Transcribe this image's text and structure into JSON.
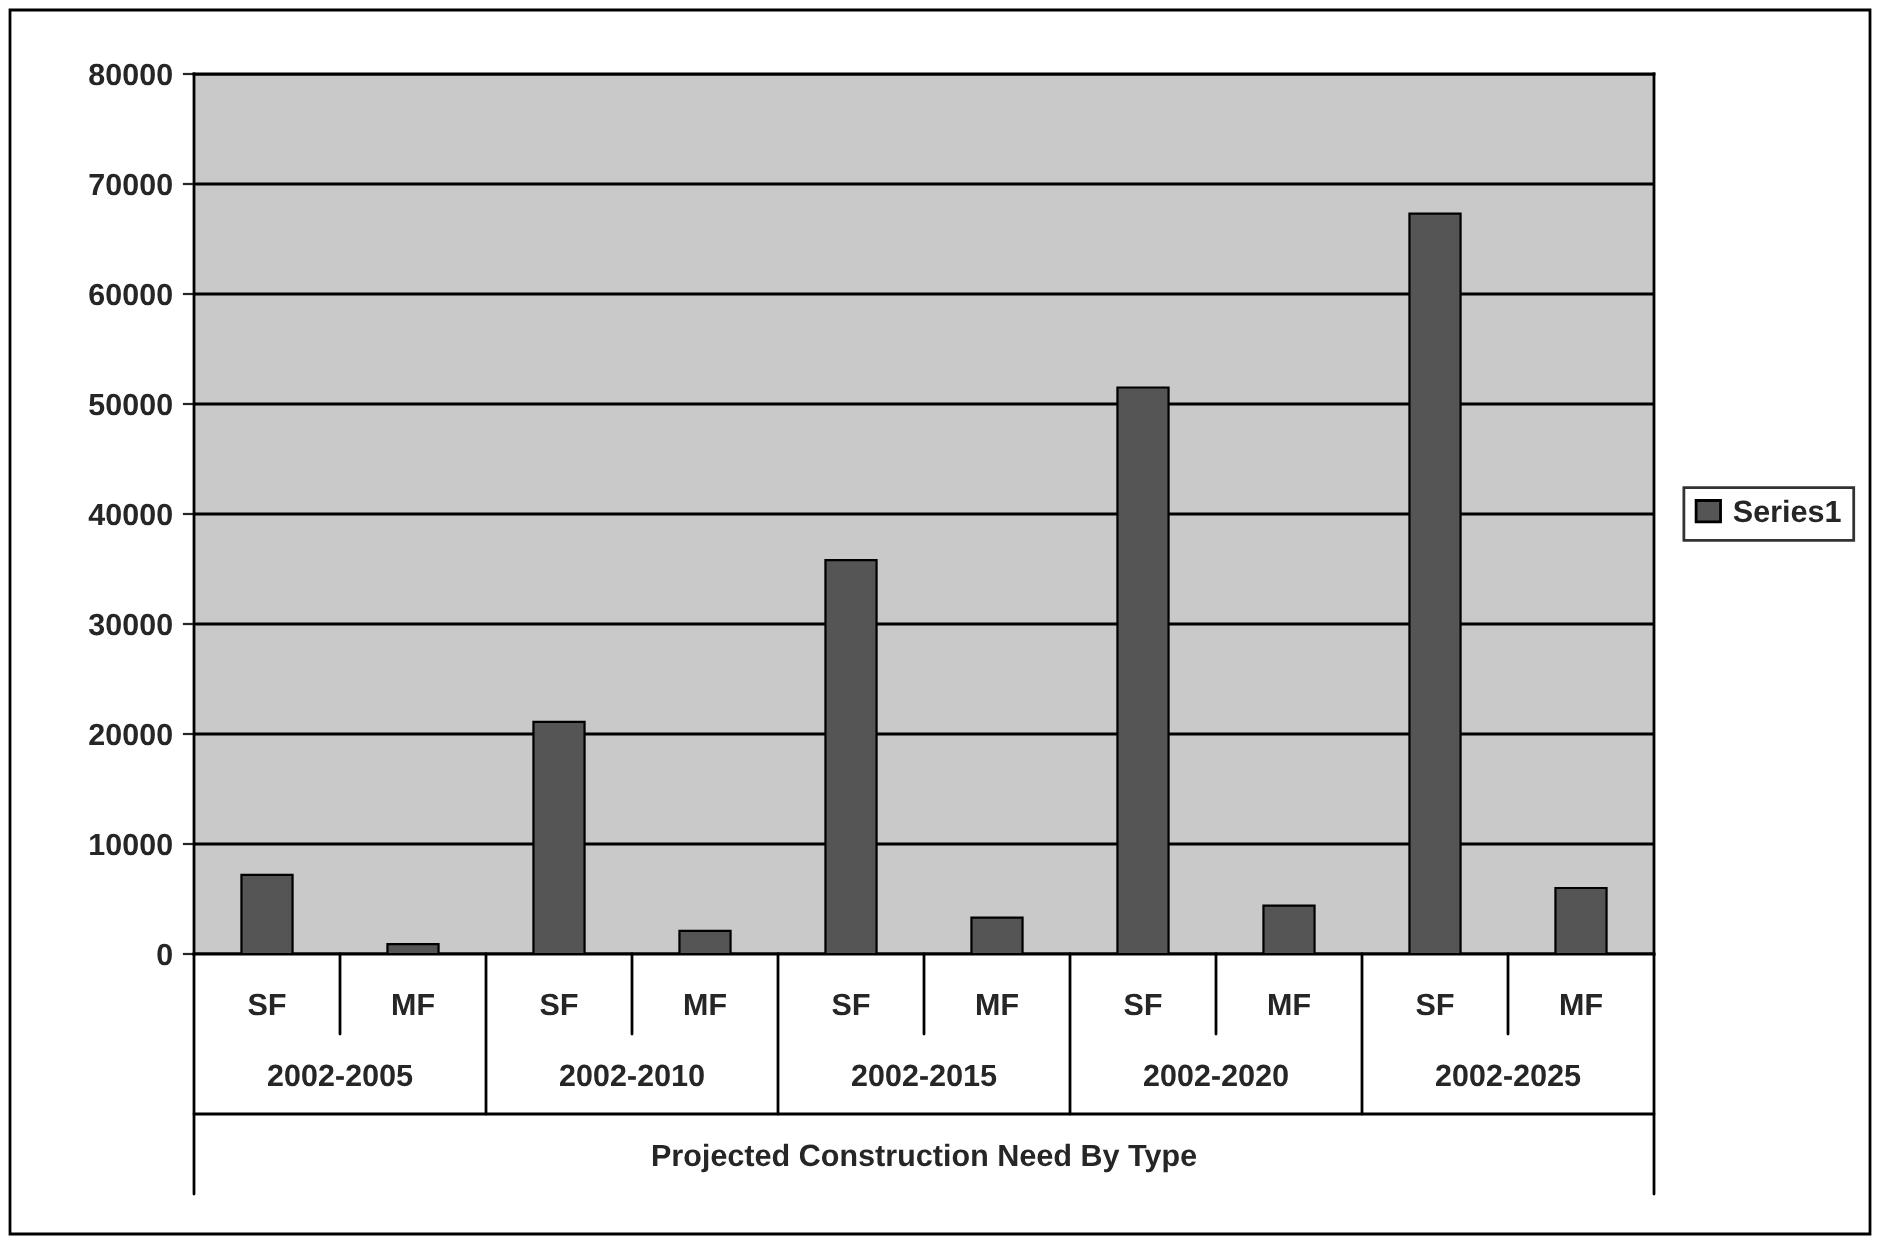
{
  "chart_data": {
    "type": "bar",
    "categories": [
      "SF",
      "MF",
      "SF",
      "MF",
      "SF",
      "MF",
      "SF",
      "MF",
      "SF",
      "MF"
    ],
    "series": [
      {
        "name": "Series1",
        "color": "#555555",
        "values": [
          7200,
          900,
          21100,
          2100,
          35800,
          3300,
          51500,
          4400,
          67300,
          6000
        ]
      }
    ],
    "ylim": [
      0,
      80000
    ],
    "yticks": [
      0,
      10000,
      20000,
      30000,
      40000,
      50000,
      60000,
      70000,
      80000
    ],
    "grid": "y",
    "legend": "right",
    "xlabel": "Projected Construction Need By Type",
    "annotations": [
      "2002-2005",
      "2002-2010",
      "2002-2015",
      "2002-2020",
      "2002-2025"
    ]
  }
}
